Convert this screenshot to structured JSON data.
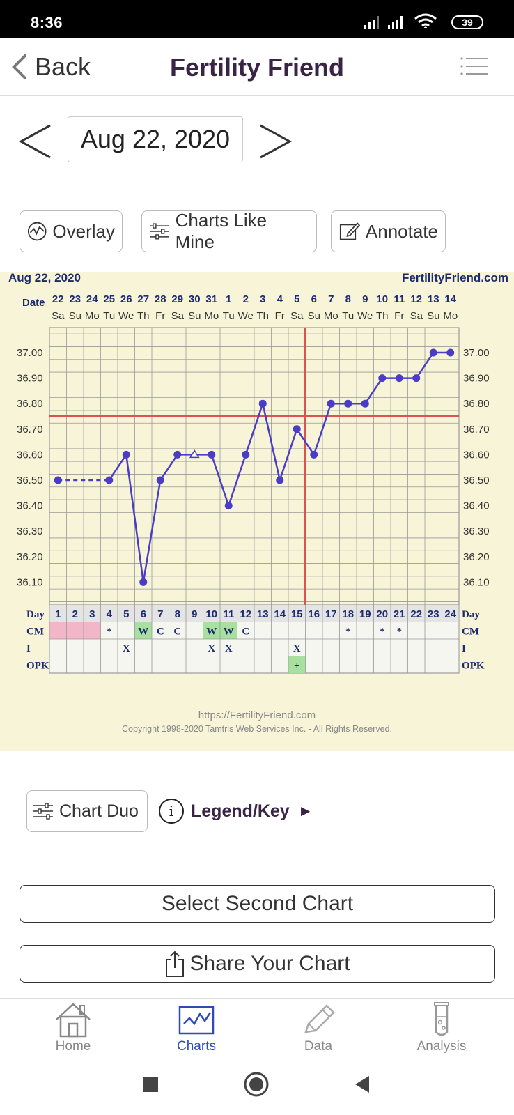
{
  "status_bar": {
    "time": "8:36",
    "battery": "39"
  },
  "header": {
    "back_label": "Back",
    "title": "Fertility Friend"
  },
  "date_nav": {
    "date": "Aug 22, 2020"
  },
  "actions": {
    "overlay": "Overlay",
    "charts_like_mine": "Charts Like Mine",
    "annotate": "Annotate"
  },
  "chart_data": {
    "type": "line",
    "chart_date": "Aug 22, 2020",
    "site": "FertilityFriend.com",
    "row_label_date": "Date",
    "dates": [
      "22",
      "23",
      "24",
      "25",
      "26",
      "27",
      "28",
      "29",
      "30",
      "31",
      "1",
      "2",
      "3",
      "4",
      "5",
      "6",
      "7",
      "8",
      "9",
      "10",
      "11",
      "12",
      "13",
      "14"
    ],
    "weekdays": [
      "Sa",
      "Su",
      "Mo",
      "Tu",
      "We",
      "Th",
      "Fr",
      "Sa",
      "Su",
      "Mo",
      "Tu",
      "We",
      "Th",
      "Fr",
      "Sa",
      "Su",
      "Mo",
      "Tu",
      "We",
      "Th",
      "Fr",
      "Sa",
      "Su",
      "Mo"
    ],
    "cycle_days": [
      1,
      2,
      3,
      4,
      5,
      6,
      7,
      8,
      9,
      10,
      11,
      12,
      13,
      14,
      15,
      16,
      17,
      18,
      19,
      20,
      21,
      22,
      23,
      24
    ],
    "temperatures": [
      36.5,
      null,
      null,
      36.5,
      36.6,
      36.1,
      36.5,
      36.6,
      36.6,
      36.6,
      36.4,
      36.6,
      36.8,
      36.5,
      36.7,
      36.6,
      36.8,
      36.8,
      36.8,
      36.9,
      36.9,
      36.9,
      37.0,
      37.0
    ],
    "open_point_days": [
      9
    ],
    "dashed_segment_days": [
      1,
      4
    ],
    "y_ticks": [
      "37.00",
      "36.90",
      "36.80",
      "36.70",
      "36.60",
      "36.50",
      "36.40",
      "36.30",
      "36.20",
      "36.10"
    ],
    "ylim": [
      36.05,
      37.05
    ],
    "coverline": 36.75,
    "ovulation_day": 16,
    "rows": {
      "day_label": "Day",
      "cm_label": "CM",
      "i_label": "I",
      "opk_label": "OPK",
      "period_days": [
        1,
        2,
        3
      ],
      "cm": {
        "4": "*",
        "6": "W",
        "7": "C",
        "8": "C",
        "10": "W",
        "11": "W",
        "12": "C",
        "18": "*",
        "20": "*",
        "21": "*"
      },
      "cm_highlight_days": [
        6,
        10,
        11
      ],
      "i": {
        "5": "X",
        "10": "X",
        "11": "X",
        "15": "X"
      },
      "opk": {
        "15": "+"
      }
    },
    "footer_url": "https://FertilityFriend.com",
    "copyright": "Copyright 1998-2020 Tamtris Web Services Inc. - All Rights Reserved.",
    "colors": {
      "line": "#4a3cc4",
      "coverline": "#d9534f",
      "background": "#f8f4d8",
      "period": "#f2b6c8",
      "highlight": "#a8e0a0",
      "text": "#1e2a6e"
    }
  },
  "below_chart": {
    "chart_duo": "Chart Duo",
    "legend": "Legend/Key",
    "legend_arrow": "►",
    "info_icon": "i"
  },
  "buttons": {
    "select_second": "Select Second Chart",
    "share": "Share Your Chart"
  },
  "bottom_nav": [
    {
      "label": "Home",
      "icon": "home-icon"
    },
    {
      "label": "Charts",
      "icon": "chart-icon"
    },
    {
      "label": "Data",
      "icon": "pencil-icon"
    },
    {
      "label": "Analysis",
      "icon": "test-tube-icon"
    }
  ]
}
